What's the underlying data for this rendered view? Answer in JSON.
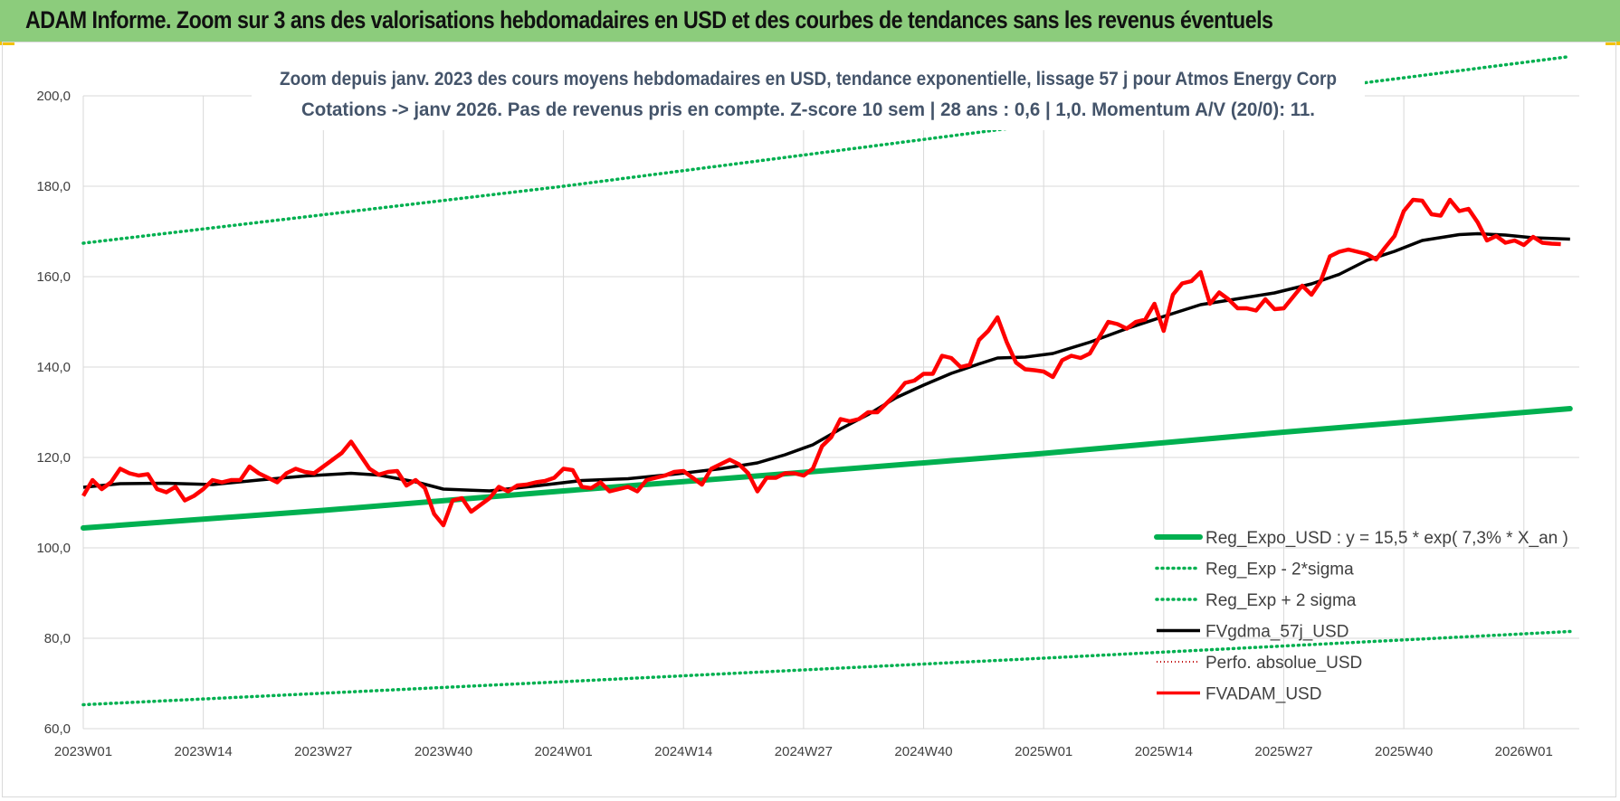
{
  "banner": {
    "title": "ADAM Informe. Zoom sur 3 ans des valorisations hebdomadaires en USD et des courbes de tendances sans les revenus éventuels",
    "color": "#8ccc7c"
  },
  "chart_data": {
    "type": "line",
    "title_lines": [
      "Zoom depuis janv. 2023 des cours moyens hebdomadaires en USD, tendance exponentielle, lissage 57 j pour Atmos Energy Corp",
      "Cotations -> janv 2026. Pas de revenus pris en compte. Z-score 10 sem | 28 ans : 0,6 | 1,0. Momentum A/V (20/0): 11."
    ],
    "xlabel": "",
    "ylabel": "",
    "ylim": [
      60,
      200
    ],
    "yticks": [
      "60,0",
      "80,0",
      "100,0",
      "120,0",
      "140,0",
      "160,0",
      "180,0",
      "200,0"
    ],
    "x_week_range": [
      1,
      162
    ],
    "xticks": [
      {
        "label": "2023W01",
        "week": 1
      },
      {
        "label": "2023W14",
        "week": 14
      },
      {
        "label": "2023W27",
        "week": 27
      },
      {
        "label": "2023W40",
        "week": 40
      },
      {
        "label": "2024W01",
        "week": 53
      },
      {
        "label": "2024W14",
        "week": 66
      },
      {
        "label": "2024W27",
        "week": 79
      },
      {
        "label": "2024W40",
        "week": 92
      },
      {
        "label": "2025W01",
        "week": 105
      },
      {
        "label": "2025W14",
        "week": 118
      },
      {
        "label": "2025W27",
        "week": 131
      },
      {
        "label": "2025W40",
        "week": 144
      },
      {
        "label": "2026W01",
        "week": 157
      }
    ],
    "grid": true,
    "legend_position": "bottom-right",
    "series": [
      {
        "name": "Reg_Expo_USD : y = 15,5 * exp( 7,3% *  X_an )",
        "color": "#00b050",
        "style": "solid-thick",
        "points": [
          [
            1,
            104.4
          ],
          [
            27,
            108.3
          ],
          [
            53,
            112.6
          ],
          [
            79,
            116.7
          ],
          [
            105,
            120.9
          ],
          [
            131,
            125.6
          ],
          [
            162,
            130.8
          ]
        ]
      },
      {
        "name": "Reg_Exp - 2*sigma",
        "color": "#00b050",
        "style": "dotted",
        "points": [
          [
            1,
            65.3
          ],
          [
            53,
            70.4
          ],
          [
            105,
            75.6
          ],
          [
            162,
            81.5
          ]
        ]
      },
      {
        "name": "Reg_Exp + 2 sigma",
        "color": "#00b050",
        "style": "dotted",
        "points": [
          [
            1,
            167.4
          ],
          [
            53,
            180.0
          ],
          [
            105,
            193.8
          ],
          [
            162,
            208.7
          ]
        ]
      },
      {
        "name": "FVgdma_57j_USD",
        "color": "#000000",
        "style": "solid",
        "points": [
          [
            1,
            113.4
          ],
          [
            5,
            114.2
          ],
          [
            10,
            114.3
          ],
          [
            15,
            114.0
          ],
          [
            20,
            115.0
          ],
          [
            25,
            115.9
          ],
          [
            30,
            116.5
          ],
          [
            33,
            116.1
          ],
          [
            37,
            114.6
          ],
          [
            40,
            113.0
          ],
          [
            45,
            112.6
          ],
          [
            50,
            113.7
          ],
          [
            55,
            114.9
          ],
          [
            60,
            115.3
          ],
          [
            65,
            116.3
          ],
          [
            70,
            117.5
          ],
          [
            74,
            118.8
          ],
          [
            77,
            120.6
          ],
          [
            80,
            122.8
          ],
          [
            83,
            126.3
          ],
          [
            86,
            129.5
          ],
          [
            89,
            133.2
          ],
          [
            92,
            136.0
          ],
          [
            95,
            138.6
          ],
          [
            98,
            140.7
          ],
          [
            100,
            142.0
          ],
          [
            103,
            142.2
          ],
          [
            106,
            143.0
          ],
          [
            110,
            145.5
          ],
          [
            114,
            148.5
          ],
          [
            118,
            151.2
          ],
          [
            122,
            153.8
          ],
          [
            126,
            155.1
          ],
          [
            130,
            156.4
          ],
          [
            134,
            158.4
          ],
          [
            137,
            160.5
          ],
          [
            140,
            163.6
          ],
          [
            143,
            165.6
          ],
          [
            146,
            168.0
          ],
          [
            150,
            169.3
          ],
          [
            152,
            169.5
          ],
          [
            155,
            169.2
          ],
          [
            158,
            168.6
          ],
          [
            162,
            168.3
          ]
        ]
      },
      {
        "name": "Perfo. absolue_USD",
        "color": "#c00000",
        "style": "dotted-legend-only",
        "points": []
      },
      {
        "name": "FVADAM_USD",
        "color": "#ff0000",
        "style": "solid",
        "points": [
          [
            1,
            111.5
          ],
          [
            2,
            115.0
          ],
          [
            3,
            113.0
          ],
          [
            4,
            114.5
          ],
          [
            5,
            117.5
          ],
          [
            6,
            116.5
          ],
          [
            7,
            116.0
          ],
          [
            8,
            116.3
          ],
          [
            9,
            113.0
          ],
          [
            10,
            112.3
          ],
          [
            11,
            113.5
          ],
          [
            12,
            110.5
          ],
          [
            13,
            111.5
          ],
          [
            14,
            113.0
          ],
          [
            15,
            115.0
          ],
          [
            16,
            114.5
          ],
          [
            17,
            115.0
          ],
          [
            18,
            115.0
          ],
          [
            19,
            118.0
          ],
          [
            20,
            116.5
          ],
          [
            21,
            115.5
          ],
          [
            22,
            114.5
          ],
          [
            23,
            116.5
          ],
          [
            24,
            117.5
          ],
          [
            25,
            116.8
          ],
          [
            26,
            116.5
          ],
          [
            27,
            118.0
          ],
          [
            28,
            119.5
          ],
          [
            29,
            121.0
          ],
          [
            30,
            123.5
          ],
          [
            31,
            120.5
          ],
          [
            32,
            117.5
          ],
          [
            33,
            116.2
          ],
          [
            34,
            116.8
          ],
          [
            35,
            117.0
          ],
          [
            36,
            113.8
          ],
          [
            37,
            115.0
          ],
          [
            38,
            113.2
          ],
          [
            39,
            107.5
          ],
          [
            40,
            105.0
          ],
          [
            41,
            110.5
          ],
          [
            42,
            111.0
          ],
          [
            43,
            108.0
          ],
          [
            44,
            109.5
          ],
          [
            45,
            111.0
          ],
          [
            46,
            113.5
          ],
          [
            47,
            112.5
          ],
          [
            48,
            113.8
          ],
          [
            49,
            114.0
          ],
          [
            50,
            114.5
          ],
          [
            51,
            114.8
          ],
          [
            52,
            115.5
          ],
          [
            53,
            117.5
          ],
          [
            54,
            117.2
          ],
          [
            55,
            113.5
          ],
          [
            56,
            113.2
          ],
          [
            57,
            114.5
          ],
          [
            58,
            112.5
          ],
          [
            59,
            113.0
          ],
          [
            60,
            113.5
          ],
          [
            61,
            112.5
          ],
          [
            62,
            115.0
          ],
          [
            63,
            115.5
          ],
          [
            64,
            116.0
          ],
          [
            65,
            116.8
          ],
          [
            66,
            117.0
          ],
          [
            67,
            115.5
          ],
          [
            68,
            114.0
          ],
          [
            69,
            117.5
          ],
          [
            70,
            118.5
          ],
          [
            71,
            119.5
          ],
          [
            72,
            118.5
          ],
          [
            73,
            116.5
          ],
          [
            74,
            112.5
          ],
          [
            75,
            115.5
          ],
          [
            76,
            115.5
          ],
          [
            77,
            116.5
          ],
          [
            78,
            116.5
          ],
          [
            79,
            116.0
          ],
          [
            80,
            117.5
          ],
          [
            81,
            122.5
          ],
          [
            82,
            124.5
          ],
          [
            83,
            128.5
          ],
          [
            84,
            128.0
          ],
          [
            85,
            128.5
          ],
          [
            86,
            130.0
          ],
          [
            87,
            130.0
          ],
          [
            88,
            132.0
          ],
          [
            89,
            134.0
          ],
          [
            90,
            136.5
          ],
          [
            91,
            137.0
          ],
          [
            92,
            138.5
          ],
          [
            93,
            138.5
          ],
          [
            94,
            142.5
          ],
          [
            95,
            142.0
          ],
          [
            96,
            140.0
          ],
          [
            97,
            140.5
          ],
          [
            98,
            146.0
          ],
          [
            99,
            148.0
          ],
          [
            100,
            151.0
          ],
          [
            101,
            145.5
          ],
          [
            102,
            141.0
          ],
          [
            103,
            139.5
          ],
          [
            104,
            139.3
          ],
          [
            105,
            139.0
          ],
          [
            106,
            137.8
          ],
          [
            107,
            141.5
          ],
          [
            108,
            142.5
          ],
          [
            109,
            142.0
          ],
          [
            110,
            143.0
          ],
          [
            111,
            146.5
          ],
          [
            112,
            150.0
          ],
          [
            113,
            149.5
          ],
          [
            114,
            148.5
          ],
          [
            115,
            150.0
          ],
          [
            116,
            150.5
          ],
          [
            117,
            154.0
          ],
          [
            118,
            148.0
          ],
          [
            119,
            156.0
          ],
          [
            120,
            158.5
          ],
          [
            121,
            159.0
          ],
          [
            122,
            161.0
          ],
          [
            123,
            154.0
          ],
          [
            124,
            156.5
          ],
          [
            125,
            155.0
          ],
          [
            126,
            153.0
          ],
          [
            127,
            153.0
          ],
          [
            128,
            152.5
          ],
          [
            129,
            155.0
          ],
          [
            130,
            152.8
          ],
          [
            131,
            153.0
          ],
          [
            132,
            155.5
          ],
          [
            133,
            158.0
          ],
          [
            134,
            156.0
          ],
          [
            135,
            159.0
          ],
          [
            136,
            164.5
          ],
          [
            137,
            165.5
          ],
          [
            138,
            166.0
          ],
          [
            139,
            165.5
          ],
          [
            140,
            165.0
          ],
          [
            141,
            163.8
          ],
          [
            142,
            166.5
          ],
          [
            143,
            169.0
          ],
          [
            144,
            174.5
          ],
          [
            145,
            177.0
          ],
          [
            146,
            176.8
          ],
          [
            147,
            173.8
          ],
          [
            148,
            173.5
          ],
          [
            149,
            177.0
          ],
          [
            150,
            174.5
          ],
          [
            151,
            175.0
          ],
          [
            152,
            172.0
          ],
          [
            153,
            168.0
          ],
          [
            154,
            169.0
          ],
          [
            155,
            167.5
          ],
          [
            156,
            168.0
          ],
          [
            157,
            167.0
          ],
          [
            158,
            168.8
          ],
          [
            159,
            167.5
          ],
          [
            160,
            167.3
          ],
          [
            161,
            167.2
          ]
        ]
      }
    ]
  }
}
